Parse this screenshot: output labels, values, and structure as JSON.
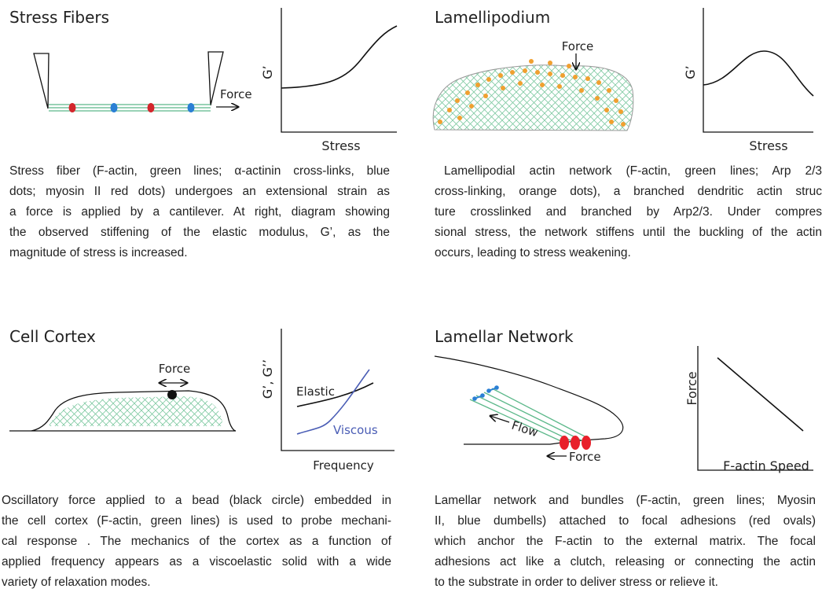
{
  "panels": [
    {
      "title": "Stress Fibers",
      "force_label": "Force",
      "y_label": "G’",
      "x_label": "Stress",
      "caption": [
        "Stress fiber (F-actin, green lines; α-actinin cross-links, blue",
        "dots; myosin II red dots) undergoes an extensional strain as",
        "a force is applied by a cantilever. At right, diagram showing",
        "the observed stiffening of the elastic modulus, G’, as the",
        "magnitude of stress is increased."
      ]
    },
    {
      "title": "Lamellipodium",
      "force_label": "Force",
      "y_label": "G’",
      "x_label": "Stress",
      "caption": [
        "Lamellipodial actin network (F-actin, green lines; Arp 2/3",
        "cross-linking, orange dots), a branched dendritic actin struc",
        "ture crosslinked and branched by Arp2/3. Under compres",
        "sional stress, the network stiffens until the buckling of the actin",
        "occurs, leading to stress weakening."
      ]
    },
    {
      "title": "Cell Cortex",
      "force_label": "Force",
      "y_label": "G’, G’’",
      "x_label": "Frequency",
      "elastic_label": "Elastic",
      "viscous_label": "Viscous",
      "caption": [
        "Oscillatory force applied to a bead (black circle) embedded in",
        "the cell cortex (F-actin, green lines) is used to probe mechani-",
        "cal response . The mechanics of the cortex as a function of",
        "applied frequency appears as a viscoelastic solid with a wide",
        "variety of relaxation modes."
      ]
    },
    {
      "title": "Lamellar Network",
      "flow_label": "Flow",
      "force_label": "Force",
      "y_label": "Force",
      "x_label": "F-actin Speed",
      "caption": [
        "Lamellar network and bundles (F-actin, green lines; Myosin",
        "II, blue dumbells) attached to focal adhesions (red ovals)",
        "which anchor the F-actin to the external matrix. The focal",
        "adhesions act like a clutch, releasing or connecting the actin",
        "to the substrate in order to deliver stress or relieve it."
      ]
    }
  ]
}
